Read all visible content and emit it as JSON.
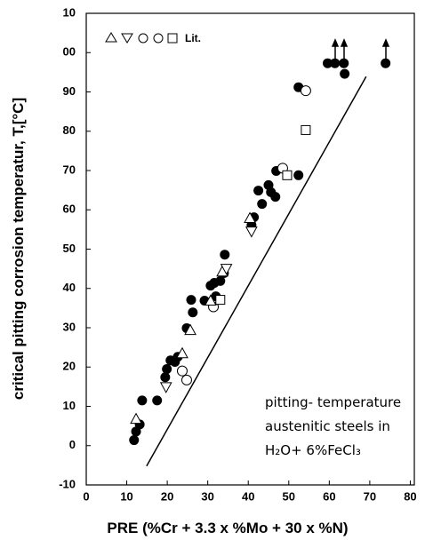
{
  "chart_data": {
    "type": "scatter",
    "x_label": "PRE (%Cr + 3.3 x %Mo + 30 x %N)",
    "y_label": "critical pitting corrosion temperatur, T,[°C]",
    "annotation": [
      "pitting- temperature",
      "austenitic  steels in",
      "H₂O+ 6%FeCl₃"
    ],
    "legend_label": "Lit.",
    "xlim": [
      0,
      81
    ],
    "ylim": [
      -10,
      110
    ],
    "xticks": [
      0,
      10,
      20,
      30,
      40,
      50,
      60,
      70,
      80
    ],
    "yticks": [
      -10,
      0,
      10,
      20,
      30,
      40,
      50,
      60,
      70,
      80,
      90,
      {
        "value": 100,
        "label": "00"
      },
      {
        "value": 110,
        "label": "10"
      }
    ],
    "series": [
      {
        "marker": "filled-circle",
        "color": "#000000",
        "x": [
          11.8,
          12.3,
          13.2,
          13.8,
          17.5,
          19.5,
          19.9,
          20.8,
          21.9,
          22.6,
          24.8,
          25.9,
          26.3,
          29.2,
          30.7,
          31.6,
          32.0,
          33.1,
          34.0,
          34.2,
          40.8,
          41.4,
          42.5,
          43.4,
          45.0,
          45.6,
          46.7,
          46.9,
          52.4,
          52.4,
          59.6,
          61.4,
          63.6,
          63.8,
          73.9
        ],
        "y": [
          1.4,
          3.6,
          5.4,
          11.5,
          11.5,
          17.4,
          19.5,
          21.7,
          21.3,
          22.6,
          29.9,
          37.1,
          33.9,
          36.9,
          40.7,
          41.4,
          38.0,
          41.9,
          43.9,
          48.6,
          56.1,
          58.1,
          64.9,
          61.5,
          66.3,
          64.5,
          63.3,
          69.9,
          68.8,
          91.2,
          97.3,
          97.3,
          97.3,
          94.6,
          97.3
        ]
      },
      {
        "marker": "open-circle",
        "color": "#000000",
        "x": [
          24.8,
          23.7,
          31.4,
          48.5,
          54.2
        ],
        "y": [
          16.7,
          19.0,
          35.3,
          70.6,
          90.3
        ]
      },
      {
        "marker": "triangle-up",
        "color": "#000000",
        "x": [
          12.3,
          23.7,
          25.7,
          30.7,
          33.6,
          40.4
        ],
        "y": [
          6.8,
          23.5,
          29.4,
          36.9,
          44.3,
          57.9
        ]
      },
      {
        "marker": "triangle-down",
        "color": "#000000",
        "x": [
          19.7,
          34.6,
          40.8
        ],
        "y": [
          14.9,
          45.0,
          54.5
        ]
      },
      {
        "marker": "square",
        "color": "#000000",
        "x": [
          33.1,
          49.6,
          54.2
        ],
        "y": [
          37.1,
          68.8,
          80.3
        ]
      }
    ],
    "fit_line": {
      "x": [
        14.9,
        69.1
      ],
      "y": [
        -5.2,
        93.9
      ]
    }
  }
}
